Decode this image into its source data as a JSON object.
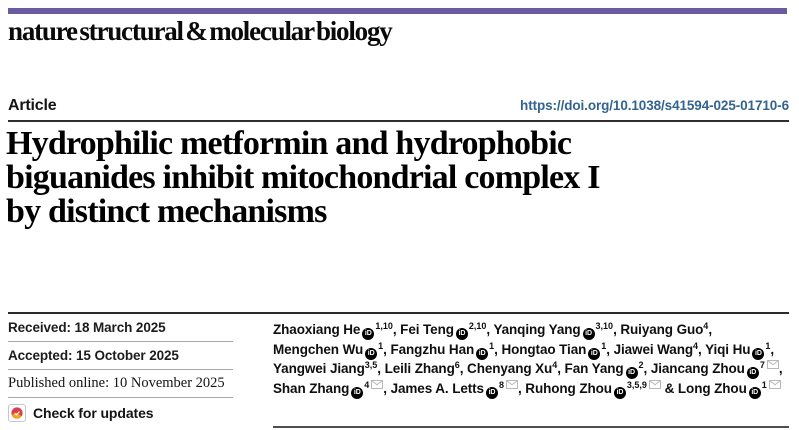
{
  "masthead": "nature structural & molecular biology",
  "article_label": "Article",
  "doi": "https://doi.org/10.1038/s41594-025-01710-6",
  "title_lines": [
    "Hydrophilic metformin and hydrophobic",
    "biguanides inhibit mitochondrial complex I",
    "by distinct mechanisms"
  ],
  "dates": {
    "received": "Received: 18 March 2025",
    "accepted": "Accepted: 15 October 2025",
    "published": "Published online: 10 November 2025"
  },
  "check_for_updates": "Check for updates",
  "authors": [
    {
      "name": "Zhaoxiang He",
      "orcid": true,
      "sup": "1,10",
      "mail": false,
      "sep": ", ",
      "br": false
    },
    {
      "name": "Fei Teng",
      "orcid": true,
      "sup": "2,10",
      "mail": false,
      "sep": ", ",
      "br": false
    },
    {
      "name": "Yanqing Yang",
      "orcid": true,
      "sup": "3,10",
      "mail": false,
      "sep": ", ",
      "br": false
    },
    {
      "name": "Ruiyang Guo",
      "orcid": false,
      "sup": "4",
      "mail": false,
      "sep": ",",
      "br": true
    },
    {
      "name": "Mengchen Wu",
      "orcid": true,
      "sup": "1",
      "mail": false,
      "sep": ", ",
      "br": false
    },
    {
      "name": "Fangzhu Han",
      "orcid": true,
      "sup": "1",
      "mail": false,
      "sep": ", ",
      "br": false
    },
    {
      "name": "Hongtao Tian",
      "orcid": true,
      "sup": "1",
      "mail": false,
      "sep": ", ",
      "br": false
    },
    {
      "name": "Jiawei Wang",
      "orcid": false,
      "sup": "4",
      "mail": false,
      "sep": ", ",
      "br": false
    },
    {
      "name": "Yiqi Hu",
      "orcid": true,
      "sup": "1",
      "mail": false,
      "sep": ",",
      "br": true
    },
    {
      "name": "Yangwei Jiang",
      "orcid": false,
      "sup": "3,5",
      "mail": false,
      "sep": ", ",
      "br": false
    },
    {
      "name": "Leili Zhang",
      "orcid": false,
      "sup": "6",
      "mail": false,
      "sep": ", ",
      "br": false
    },
    {
      "name": "Chenyang Xu",
      "orcid": false,
      "sup": "4",
      "mail": false,
      "sep": ", ",
      "br": false
    },
    {
      "name": "Fan Yang",
      "orcid": true,
      "sup": "2",
      "mail": false,
      "sep": ", ",
      "br": false
    },
    {
      "name": "Jiancang Zhou",
      "orcid": true,
      "sup": "7",
      "mail": true,
      "sep": ",",
      "br": true
    },
    {
      "name": "Shan Zhang",
      "orcid": true,
      "sup": "4",
      "mail": true,
      "sep": ", ",
      "br": false
    },
    {
      "name": "James A. Letts",
      "orcid": true,
      "sup": "8",
      "mail": true,
      "sep": ", ",
      "br": false
    },
    {
      "name": "Ruhong Zhou",
      "orcid": true,
      "sup": "3,5,9",
      "mail": true,
      "sep": " & ",
      "br": false
    },
    {
      "name": "Long Zhou",
      "orcid": true,
      "sup": "1",
      "mail": true,
      "sep": "",
      "br": false
    }
  ],
  "icons": {
    "orcid_glyph": "iD",
    "envelope": "envelope-icon",
    "crossmark": "crossmark-icon"
  },
  "colors": {
    "brand_purple": "#6a5a9e",
    "link_blue": "#33648f",
    "crossmark_red": "#d8404f",
    "crossmark_yellow": "#f3a712"
  }
}
